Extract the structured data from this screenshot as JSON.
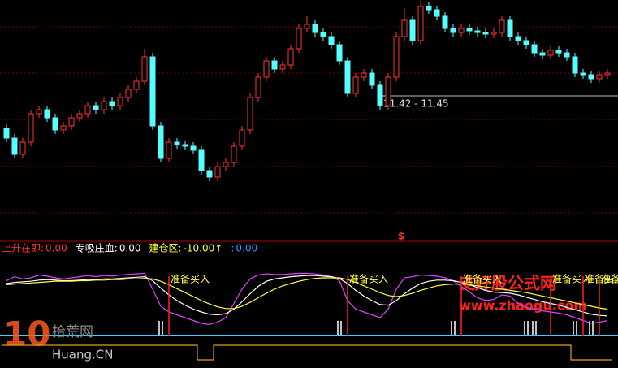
{
  "chart_data": [
    {
      "type": "candlestick",
      "ylim": [
        9.68,
        12.63
      ],
      "up_color": "#ff3232",
      "down_color": "#54ffff",
      "annotation": "11.42 - 11.45",
      "marker": "$",
      "open": [
        11.05,
        10.93,
        10.73,
        10.88,
        11.23,
        11.28,
        11.18,
        11.03,
        11.08,
        11.18,
        11.23,
        11.33,
        11.28,
        11.38,
        11.33,
        11.43,
        11.53,
        11.63,
        11.93,
        11.08,
        10.68,
        10.88,
        10.85,
        10.83,
        10.78,
        10.53,
        10.45,
        10.58,
        10.63,
        10.83,
        11.03,
        11.43,
        11.68,
        11.88,
        11.78,
        11.83,
        12.03,
        12.28,
        12.33,
        12.23,
        12.18,
        12.08,
        11.88,
        11.48,
        11.68,
        11.73,
        11.58,
        11.33,
        11.68,
        12.18,
        12.38,
        12.13,
        12.55,
        12.51,
        12.43,
        12.28,
        12.23,
        12.28,
        12.25,
        12.23,
        12.21,
        12.23,
        12.38,
        12.18,
        12.13,
        12.08,
        11.98,
        11.95,
        12.01,
        11.98,
        11.93,
        11.73,
        11.71,
        11.66,
        11.71
      ],
      "high": [
        11.1,
        10.98,
        10.93,
        11.28,
        11.33,
        11.33,
        11.23,
        11.13,
        11.23,
        11.28,
        11.38,
        11.38,
        11.43,
        11.43,
        11.48,
        11.58,
        11.68,
        12.03,
        11.98,
        11.13,
        10.93,
        10.93,
        10.9,
        10.88,
        10.83,
        10.58,
        10.63,
        10.68,
        10.88,
        11.08,
        11.48,
        11.73,
        11.93,
        11.93,
        11.88,
        12.08,
        12.33,
        12.43,
        12.38,
        12.28,
        12.23,
        12.13,
        11.93,
        11.73,
        11.78,
        11.78,
        11.63,
        11.73,
        12.23,
        12.53,
        12.43,
        12.62,
        12.6,
        12.56,
        12.48,
        12.33,
        12.33,
        12.33,
        12.3,
        12.28,
        12.28,
        12.43,
        12.43,
        12.23,
        12.18,
        12.13,
        12.03,
        12.06,
        12.06,
        12.03,
        11.98,
        11.78,
        11.76,
        11.76,
        11.78
      ],
      "low": [
        10.88,
        10.68,
        10.68,
        10.83,
        11.18,
        11.13,
        10.98,
        10.98,
        11.03,
        11.13,
        11.18,
        11.23,
        11.23,
        11.28,
        11.28,
        11.38,
        11.48,
        11.58,
        11.03,
        10.63,
        10.63,
        10.8,
        10.78,
        10.73,
        10.48,
        10.4,
        10.4,
        10.53,
        10.58,
        10.78,
        10.98,
        11.38,
        11.63,
        11.73,
        11.73,
        11.78,
        11.98,
        12.23,
        12.18,
        12.13,
        12.03,
        11.83,
        11.43,
        11.43,
        11.63,
        11.53,
        11.28,
        11.28,
        11.63,
        12.13,
        12.08,
        12.08,
        12.46,
        12.38,
        12.23,
        12.18,
        12.18,
        12.2,
        12.18,
        12.16,
        12.16,
        12.18,
        12.13,
        12.08,
        12.03,
        11.93,
        11.9,
        11.9,
        11.93,
        11.88,
        11.68,
        11.66,
        11.61,
        11.61,
        11.66
      ],
      "close": [
        10.93,
        10.73,
        10.88,
        11.23,
        11.28,
        11.18,
        11.03,
        11.08,
        11.18,
        11.23,
        11.33,
        11.28,
        11.38,
        11.33,
        11.43,
        11.53,
        11.63,
        11.93,
        11.08,
        10.68,
        10.88,
        10.85,
        10.83,
        10.78,
        10.53,
        10.45,
        10.58,
        10.63,
        10.83,
        11.03,
        11.43,
        11.68,
        11.88,
        11.78,
        11.83,
        12.03,
        12.28,
        12.33,
        12.23,
        12.18,
        12.08,
        11.88,
        11.48,
        11.68,
        11.73,
        11.58,
        11.33,
        11.68,
        12.18,
        12.38,
        12.13,
        12.55,
        12.51,
        12.43,
        12.28,
        12.23,
        12.28,
        12.25,
        12.23,
        12.21,
        12.23,
        12.38,
        12.18,
        12.13,
        12.08,
        11.98,
        11.95,
        12.01,
        11.98,
        11.93,
        11.73,
        11.71,
        11.66,
        11.71,
        11.73
      ]
    },
    {
      "type": "line",
      "header": [
        {
          "label": "上升在即:",
          "value": "0.00",
          "color": "#ff3030"
        },
        {
          "label": "专吸庄血:",
          "value": "0.00",
          "color": "#ffffff"
        },
        {
          "label": "建仓区:",
          "value": "-10.00↑",
          "color": "#ffff30"
        },
        {
          "label": ":",
          "value": "0.00",
          "color": "#3090ff"
        }
      ],
      "ylim": [
        0,
        100
      ],
      "series": [
        {
          "color": "#e040ff",
          "values": [
            85,
            92,
            88,
            90,
            95,
            93,
            90,
            88,
            90,
            92,
            94,
            92,
            94,
            93,
            95,
            96,
            97,
            98,
            70,
            40,
            30,
            25,
            20,
            15,
            10,
            8,
            12,
            20,
            45,
            70,
            88,
            95,
            97,
            96,
            96,
            97,
            98,
            98,
            97,
            95,
            92,
            85,
            50,
            35,
            30,
            25,
            20,
            35,
            70,
            90,
            92,
            95,
            94,
            93,
            90,
            85,
            75,
            65,
            55,
            50,
            52,
            60,
            58,
            45,
            38,
            35,
            32,
            30,
            28,
            25,
            20,
            15,
            10,
            12,
            15
          ]
        },
        {
          "color": "#ffffff",
          "values": [
            80,
            82,
            83,
            84,
            86,
            87,
            86,
            85,
            85,
            86,
            87,
            87,
            88,
            88,
            89,
            90,
            91,
            92,
            85,
            72,
            60,
            50,
            42,
            35,
            30,
            26,
            25,
            27,
            35,
            48,
            62,
            75,
            84,
            88,
            90,
            92,
            93,
            94,
            94,
            93,
            92,
            89,
            80,
            68,
            58,
            50,
            43,
            42,
            50,
            62,
            72,
            80,
            84,
            86,
            86,
            85,
            82,
            78,
            73,
            68,
            65,
            64,
            63,
            60,
            56,
            52,
            48,
            45,
            42,
            38,
            34,
            30,
            26,
            24,
            23
          ]
        },
        {
          "color": "#ffff40",
          "values": [
            78,
            79,
            80,
            81,
            82,
            83,
            84,
            84,
            84,
            85,
            85,
            86,
            86,
            87,
            87,
            88,
            88,
            89,
            88,
            84,
            78,
            71,
            64,
            57,
            50,
            44,
            39,
            36,
            36,
            40,
            47,
            55,
            63,
            70,
            76,
            80,
            84,
            87,
            89,
            90,
            90,
            90,
            87,
            82,
            76,
            70,
            64,
            59,
            57,
            59,
            63,
            68,
            72,
            76,
            78,
            79,
            79,
            78,
            76,
            74,
            72,
            70,
            68,
            66,
            64,
            61,
            58,
            55,
            52,
            49,
            46,
            43,
            40,
            37,
            35
          ]
        }
      ],
      "signals": [
        {
          "index": 20,
          "label": "准备买入"
        },
        {
          "index": 42,
          "label": "准备买入"
        },
        {
          "index": 56,
          "label": "准备买入"
        },
        {
          "index": 67,
          "label": "准备买入"
        },
        {
          "index": 71,
          "label": "准备买入"
        },
        {
          "index": 73,
          "label": "准备买入"
        }
      ],
      "ticks": [
        19,
        41,
        55,
        64,
        65,
        70,
        72
      ],
      "state_color": "#e0a020",
      "state": [
        1,
        1,
        1,
        1,
        1,
        1,
        1,
        1,
        1,
        1,
        1,
        1,
        1,
        1,
        1,
        1,
        1,
        1,
        1,
        1,
        1,
        1,
        1,
        1,
        0,
        0,
        1,
        1,
        1,
        1,
        1,
        1,
        1,
        1,
        1,
        1,
        1,
        1,
        1,
        1,
        1,
        1,
        1,
        1,
        1,
        1,
        1,
        1,
        1,
        1,
        1,
        1,
        1,
        1,
        1,
        1,
        1,
        1,
        1,
        1,
        1,
        1,
        1,
        1,
        1,
        1,
        1,
        1,
        1,
        1,
        0,
        0,
        0,
        0,
        0
      ]
    }
  ],
  "watermarks": {
    "logo_number": "10",
    "logo_name": "拾荒网",
    "logo_site": "Huang.CN",
    "site_name": "支好股公式网",
    "site_url": "www.zhaogu.com"
  }
}
